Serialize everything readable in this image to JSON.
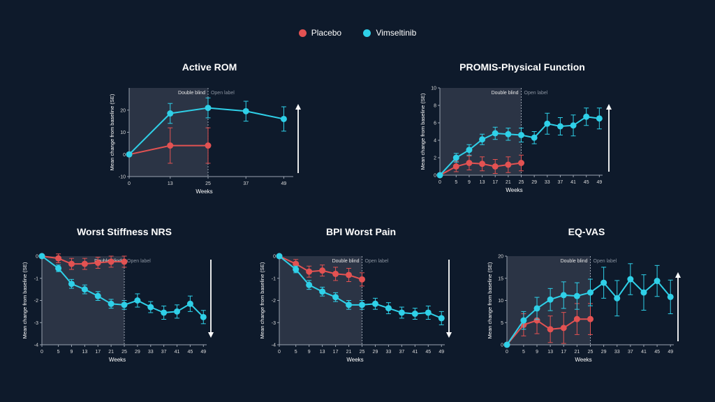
{
  "legend": {
    "placebo": {
      "label": "Placebo",
      "color": "#e35252"
    },
    "vimseltinib": {
      "label": "Vimseltinib",
      "color": "#2fd0e8"
    }
  },
  "labels": {
    "ylabel": "Mean change from baseline (SE)",
    "xlabel": "Weeks",
    "double_blind": "Double blind",
    "open_label": "Open label"
  },
  "chart_data": [
    {
      "id": "rom",
      "type": "line",
      "title": "Active ROM",
      "xticks": [
        0,
        13,
        25,
        37,
        49
      ],
      "xlim": [
        0,
        52
      ],
      "ylim": [
        -10,
        30
      ],
      "yticks": [
        -10,
        0,
        10,
        20
      ],
      "blind_end": 25,
      "arrow": "up",
      "series": [
        {
          "name": "Placebo",
          "x": [
            0,
            13,
            25
          ],
          "y": [
            0,
            4,
            4
          ],
          "err": [
            0,
            8,
            8
          ]
        },
        {
          "name": "Vimseltinib",
          "x": [
            0,
            13,
            25,
            37,
            49
          ],
          "y": [
            0,
            18.5,
            21,
            19.5,
            16
          ],
          "err": [
            0,
            4.5,
            4.5,
            4.5,
            5.5
          ]
        }
      ]
    },
    {
      "id": "promis",
      "type": "line",
      "title": "PROMIS-Physical Function",
      "xticks": [
        0,
        5,
        9,
        13,
        17,
        21,
        25,
        29,
        33,
        37,
        41,
        45,
        49
      ],
      "xlim": [
        0,
        50
      ],
      "ylim": [
        0,
        10
      ],
      "yticks": [
        0,
        2,
        4,
        6,
        8,
        10
      ],
      "blind_end": 25,
      "arrow": "up",
      "series": [
        {
          "name": "Placebo",
          "x": [
            0,
            5,
            9,
            13,
            17,
            21,
            25
          ],
          "y": [
            0,
            1.0,
            1.4,
            1.3,
            1.0,
            1.2,
            1.4
          ],
          "err": [
            0,
            0.6,
            0.8,
            0.8,
            0.8,
            0.9,
            0.9
          ]
        },
        {
          "name": "Vimseltinib",
          "x": [
            0,
            5,
            9,
            13,
            17,
            21,
            25,
            29,
            33,
            37,
            41,
            45,
            49
          ],
          "y": [
            0,
            2.0,
            2.9,
            4.1,
            4.8,
            4.7,
            4.6,
            4.3,
            5.9,
            5.6,
            5.7,
            6.7,
            6.5
          ],
          "err": [
            0,
            0.5,
            0.6,
            0.6,
            0.7,
            0.7,
            0.8,
            0.7,
            1.2,
            1.0,
            1.2,
            1.0,
            1.2
          ]
        }
      ]
    },
    {
      "id": "stiffness",
      "type": "line",
      "title": "Worst Stiffness NRS",
      "xticks": [
        0,
        5,
        9,
        13,
        17,
        21,
        25,
        29,
        33,
        37,
        41,
        45,
        49
      ],
      "xlim": [
        0,
        50
      ],
      "ylim": [
        -4,
        0
      ],
      "yticks": [
        -4,
        -3,
        -2,
        -1,
        0
      ],
      "blind_end": 25,
      "arrow": "down",
      "series": [
        {
          "name": "Placebo",
          "x": [
            0,
            5,
            9,
            13,
            17,
            21,
            25
          ],
          "y": [
            0,
            -0.1,
            -0.35,
            -0.35,
            -0.3,
            -0.25,
            -0.25
          ],
          "err": [
            0,
            0.2,
            0.25,
            0.25,
            0.25,
            0.25,
            0.25
          ]
        },
        {
          "name": "Vimseltinib",
          "x": [
            0,
            5,
            9,
            13,
            17,
            21,
            25,
            29,
            33,
            37,
            41,
            45,
            49
          ],
          "y": [
            0,
            -0.55,
            -1.25,
            -1.5,
            -1.8,
            -2.15,
            -2.2,
            -2.0,
            -2.3,
            -2.55,
            -2.5,
            -2.15,
            -2.75
          ],
          "err": [
            0,
            0.15,
            0.2,
            0.2,
            0.2,
            0.2,
            0.2,
            0.3,
            0.25,
            0.3,
            0.3,
            0.35,
            0.3
          ]
        }
      ]
    },
    {
      "id": "bpi",
      "type": "line",
      "title": "BPI Worst Pain",
      "xticks": [
        0,
        5,
        9,
        13,
        17,
        21,
        25,
        29,
        33,
        37,
        41,
        45,
        49
      ],
      "xlim": [
        0,
        50
      ],
      "ylim": [
        -4,
        0
      ],
      "yticks": [
        -4,
        -3,
        -2,
        -1,
        0
      ],
      "blind_end": 25,
      "arrow": "down",
      "series": [
        {
          "name": "Placebo",
          "x": [
            0,
            5,
            9,
            13,
            17,
            21,
            25
          ],
          "y": [
            0,
            -0.35,
            -0.7,
            -0.65,
            -0.8,
            -0.85,
            -1.05
          ],
          "err": [
            0,
            0.2,
            0.25,
            0.25,
            0.3,
            0.3,
            0.3
          ]
        },
        {
          "name": "Vimseltinib",
          "x": [
            0,
            5,
            9,
            13,
            17,
            21,
            25,
            29,
            33,
            37,
            41,
            45,
            49
          ],
          "y": [
            0,
            -0.6,
            -1.3,
            -1.6,
            -1.85,
            -2.2,
            -2.2,
            -2.15,
            -2.35,
            -2.55,
            -2.6,
            -2.55,
            -2.8
          ],
          "err": [
            0,
            0.15,
            0.2,
            0.2,
            0.2,
            0.2,
            0.2,
            0.25,
            0.25,
            0.25,
            0.25,
            0.3,
            0.3
          ]
        }
      ]
    },
    {
      "id": "eqvas",
      "type": "line",
      "title": "EQ-VAS",
      "xticks": [
        0,
        5,
        9,
        13,
        17,
        21,
        25,
        29,
        33,
        37,
        41,
        45,
        49
      ],
      "xlim": [
        0,
        50
      ],
      "ylim": [
        0,
        20
      ],
      "yticks": [
        0,
        5,
        10,
        15,
        20
      ],
      "blind_end": 25,
      "arrow": "up",
      "series": [
        {
          "name": "Placebo",
          "x": [
            0,
            5,
            9,
            13,
            17,
            21,
            25
          ],
          "y": [
            0,
            4.5,
            5.5,
            3.5,
            3.8,
            5.8,
            5.8
          ],
          "err": [
            0,
            2.5,
            3.0,
            3.0,
            3.5,
            3.5,
            3.5
          ]
        },
        {
          "name": "Vimseltinib",
          "x": [
            0,
            5,
            9,
            13,
            17,
            21,
            25,
            29,
            33,
            37,
            41,
            45,
            49
          ],
          "y": [
            0,
            5.5,
            8.2,
            10.2,
            11.2,
            11.0,
            11.8,
            14.0,
            10.5,
            14.8,
            11.8,
            14.4,
            10.8
          ],
          "err": [
            0,
            2.0,
            2.5,
            2.5,
            3.0,
            3.0,
            3.0,
            3.5,
            4.0,
            3.5,
            4.0,
            3.5,
            3.8
          ]
        }
      ]
    }
  ]
}
